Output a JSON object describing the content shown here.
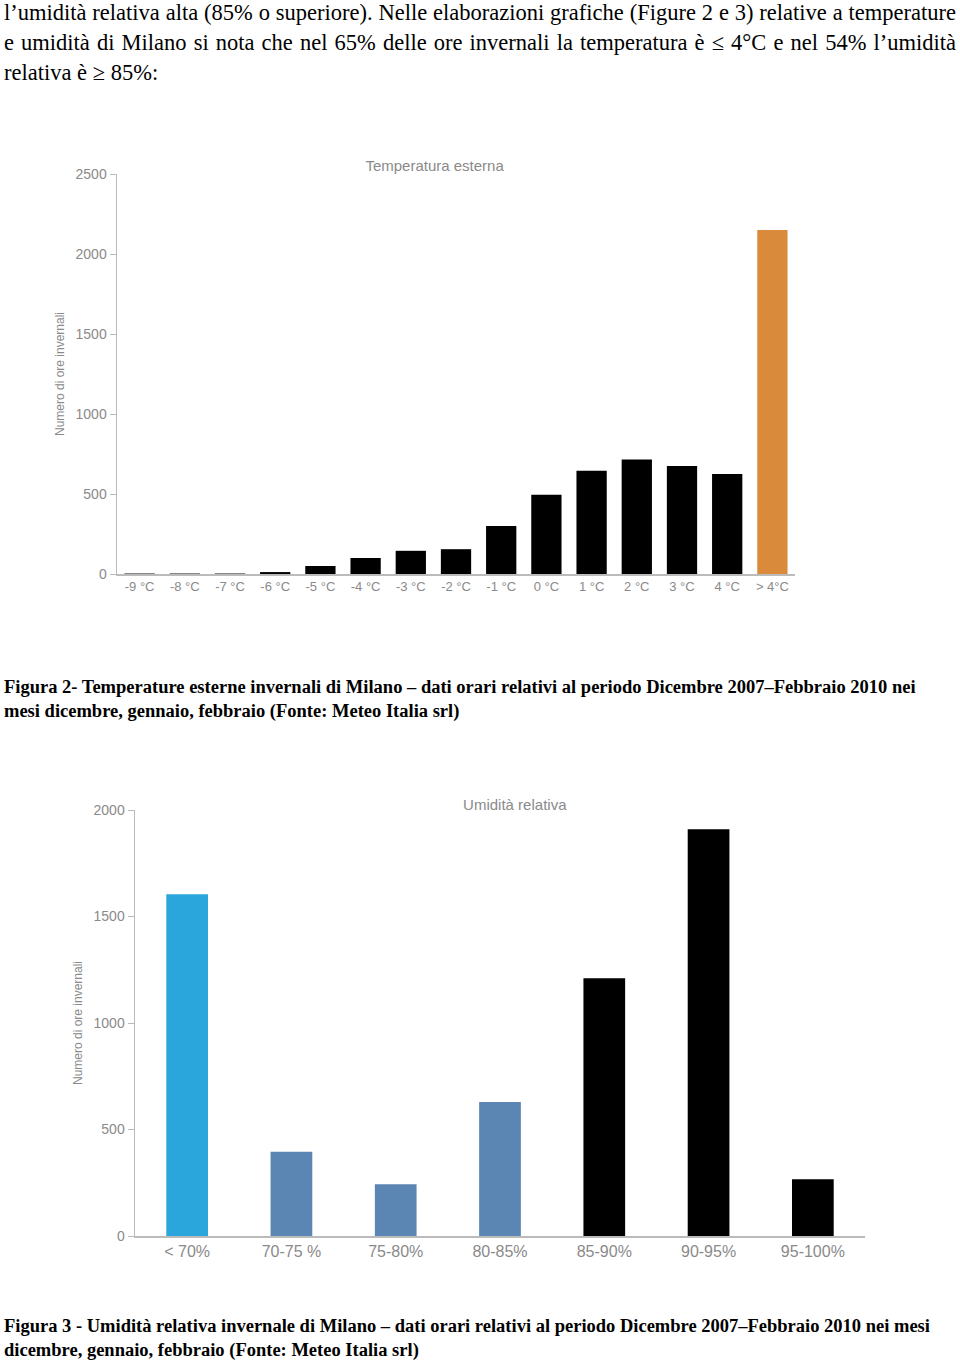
{
  "document": {
    "text": "l’umidità relativa alta (85% o superiore). Nelle elaborazioni grafiche (Figure 2 e 3) relative a temperature e umidità di Milano si nota che nel 65% delle ore invernali la temperatura è ≤ 4°C e nel 54% l’umidità relativa è ≥ 85%:",
    "captions": [
      "Figura 2- Temperature esterne invernali di Milano – dati orari relativi al periodo Dicembre 2007–Febbraio 2010 nei mesi dicembre, gennaio, febbraio (Fonte: Meteo Italia srl)",
      "Figura 3 - Umidità relativa invernale di Milano – dati orari relativi  al periodo Dicembre 2007–Febbraio 2010 nei mesi dicembre, gennaio, febbraio (Fonte: Meteo Italia srl)"
    ]
  },
  "chart_data": [
    {
      "type": "bar",
      "title": "Temperatura esterna",
      "y_label": "Numero di ore invernali",
      "categories": [
        "-9 °C",
        "-8 °C",
        "-7 °C",
        "-6 °C",
        "-5 °C",
        "-4 °C",
        "-3 °C",
        "-2 °C",
        "-1 °C",
        "0 °C",
        "1 °C",
        "2 °C",
        "3 °C",
        "4 °C",
        "> 4°C"
      ],
      "values": [
        3,
        3,
        3,
        12,
        50,
        100,
        145,
        155,
        300,
        495,
        645,
        715,
        675,
        625,
        2150
      ],
      "colors": [
        "#000000",
        "#000000",
        "#000000",
        "#000000",
        "#000000",
        "#000000",
        "#000000",
        "#000000",
        "#000000",
        "#000000",
        "#000000",
        "#000000",
        "#000000",
        "#000000",
        "#d98a3a"
      ],
      "ylim": [
        0,
        2500
      ],
      "yticks": [
        0,
        500,
        1000,
        1500,
        2000,
        2500
      ],
      "grid": false
    },
    {
      "type": "bar",
      "title": "Umidità relativa",
      "y_label": "Numero di ore invernali",
      "categories": [
        "< 70%",
        "70-75 %",
        "75-80%",
        "80-85%",
        "85-90%",
        "90-95%",
        "95-100%"
      ],
      "values": [
        1605,
        395,
        243,
        629,
        1210,
        1910,
        267
      ],
      "colors": [
        "#2aa6dc",
        "#5b86b4",
        "#5b86b4",
        "#5b86b4",
        "#000000",
        "#000000",
        "#000000"
      ],
      "ylim": [
        0,
        2000
      ],
      "yticks": [
        0,
        500,
        1000,
        1500,
        2000
      ],
      "grid": false
    }
  ]
}
